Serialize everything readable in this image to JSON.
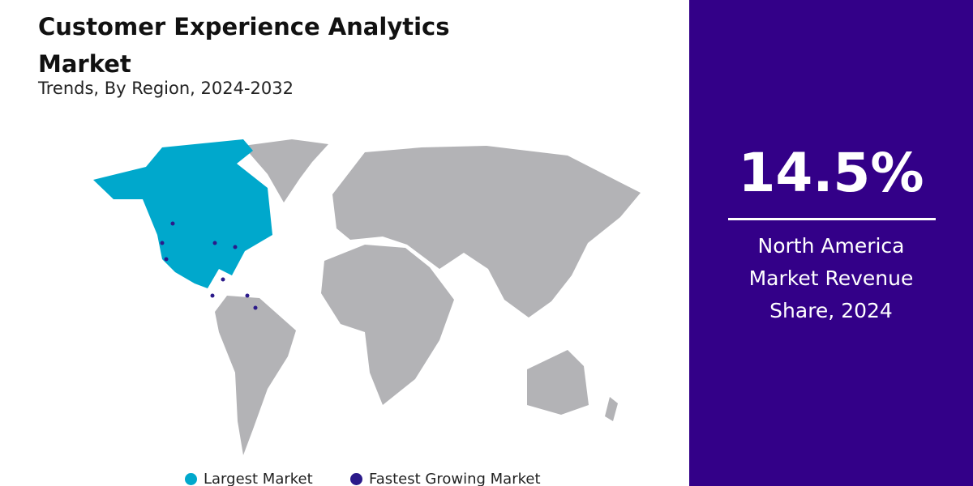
{
  "header": {
    "title": "Customer Experience Analytics Market",
    "subtitle": "Trends, By Region, 2024-2032"
  },
  "legend": [
    {
      "label": "Largest Market"
    },
    {
      "label": "Fastest Growing Market"
    }
  ],
  "stat": {
    "value": "14.5%",
    "label": "North America Market Revenue Share, 2024"
  }
}
